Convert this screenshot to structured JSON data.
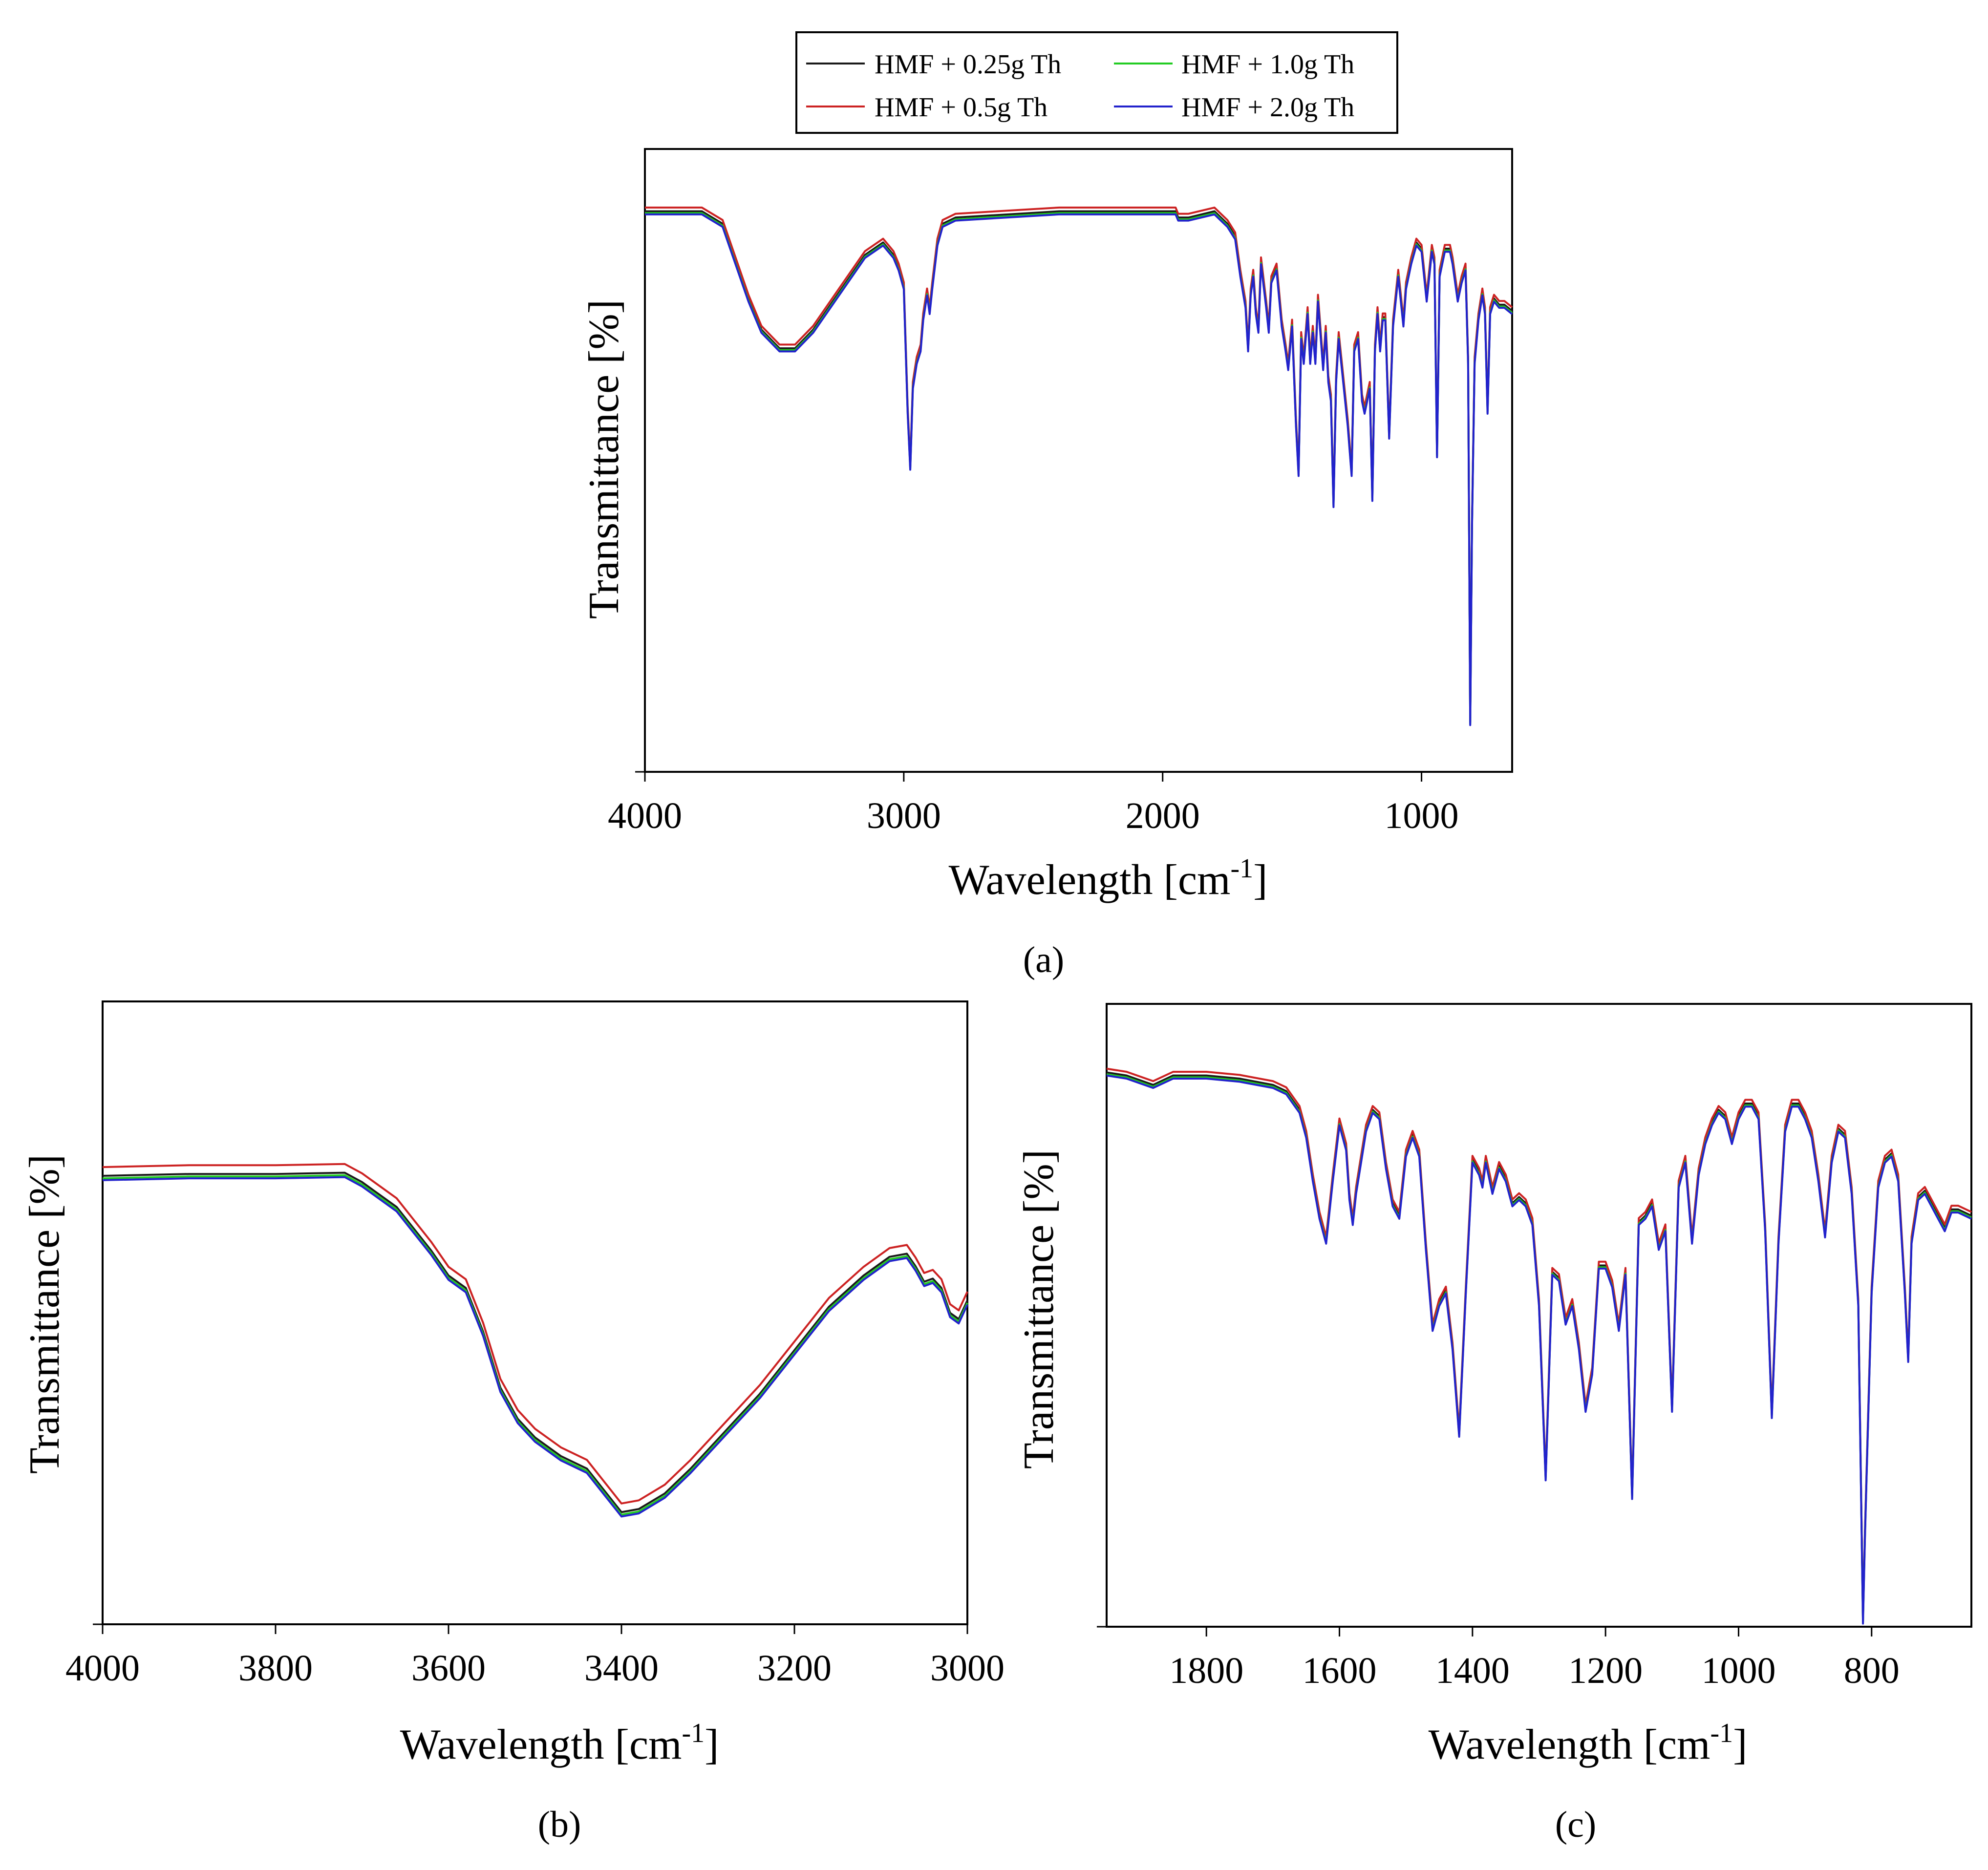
{
  "legend": [
    {
      "label": "HMF + 0.25g Th",
      "color": "#1a1a1a"
    },
    {
      "label": "HMF + 0.5g Th",
      "color": "#cc2222"
    },
    {
      "label": "HMF + 1.0g Th",
      "color": "#22cc22"
    },
    {
      "label": "HMF + 2.0g Th",
      "color": "#2222cc"
    }
  ],
  "chart_data": [
    {
      "type": "line",
      "panel": "a",
      "panel_label": "(a)",
      "xlabel": "Wavelength  [cm-1]",
      "xlabel_main": "Wavelength  [cm",
      "xlabel_sup": "-1",
      "xlabel_end": "]",
      "ylabel": "Transmittance [%]",
      "xlim": [
        4000,
        650
      ],
      "ylim": [
        0,
        100
      ],
      "xticks": [
        4000,
        3000,
        2000,
        1000
      ],
      "tick_labels": [
        "4000",
        "3000",
        "2000",
        "1000"
      ],
      "series": [
        {
          "name": "HMF + 0.25g Th",
          "offset": 0
        },
        {
          "name": "HMF + 0.5g Th",
          "offset": 0.6
        },
        {
          "name": "HMF + 1.0g Th",
          "offset": -0.3
        },
        {
          "name": "HMF + 2.0g Th",
          "offset": -0.5
        }
      ],
      "points": [
        [
          4000,
          90
        ],
        [
          3780,
          90
        ],
        [
          3700,
          88
        ],
        [
          3600,
          76
        ],
        [
          3550,
          71
        ],
        [
          3480,
          68
        ],
        [
          3420,
          68
        ],
        [
          3350,
          71
        ],
        [
          3250,
          77
        ],
        [
          3150,
          83
        ],
        [
          3080,
          85
        ],
        [
          3040,
          83
        ],
        [
          3020,
          81
        ],
        [
          3000,
          78
        ],
        [
          2985,
          58
        ],
        [
          2975,
          49
        ],
        [
          2965,
          62
        ],
        [
          2950,
          66
        ],
        [
          2935,
          68
        ],
        [
          2925,
          73
        ],
        [
          2910,
          77
        ],
        [
          2900,
          74
        ],
        [
          2890,
          78
        ],
        [
          2870,
          85
        ],
        [
          2850,
          88
        ],
        [
          2800,
          89
        ],
        [
          2400,
          90
        ],
        [
          2200,
          90
        ],
        [
          1950,
          90
        ],
        [
          1940,
          89
        ],
        [
          1930,
          89
        ],
        [
          1900,
          89
        ],
        [
          1800,
          90
        ],
        [
          1750,
          88
        ],
        [
          1720,
          86
        ],
        [
          1700,
          80
        ],
        [
          1680,
          75
        ],
        [
          1670,
          68
        ],
        [
          1660,
          77
        ],
        [
          1650,
          80
        ],
        [
          1640,
          74
        ],
        [
          1630,
          71
        ],
        [
          1620,
          82
        ],
        [
          1600,
          75
        ],
        [
          1590,
          71
        ],
        [
          1580,
          79
        ],
        [
          1560,
          81
        ],
        [
          1540,
          72
        ],
        [
          1525,
          68
        ],
        [
          1515,
          65
        ],
        [
          1500,
          72
        ],
        [
          1485,
          56
        ],
        [
          1475,
          48
        ],
        [
          1465,
          70
        ],
        [
          1455,
          66
        ],
        [
          1440,
          74
        ],
        [
          1430,
          66
        ],
        [
          1420,
          71
        ],
        [
          1410,
          66
        ],
        [
          1400,
          76
        ],
        [
          1380,
          65
        ],
        [
          1370,
          71
        ],
        [
          1360,
          63
        ],
        [
          1350,
          60
        ],
        [
          1340,
          43
        ],
        [
          1330,
          63
        ],
        [
          1320,
          70
        ],
        [
          1310,
          66
        ],
        [
          1300,
          62
        ],
        [
          1285,
          56
        ],
        [
          1270,
          48
        ],
        [
          1260,
          68
        ],
        [
          1245,
          70
        ],
        [
          1230,
          60
        ],
        [
          1220,
          58
        ],
        [
          1210,
          60
        ],
        [
          1200,
          62
        ],
        [
          1190,
          44
        ],
        [
          1180,
          68
        ],
        [
          1170,
          74
        ],
        [
          1160,
          68
        ],
        [
          1150,
          73
        ],
        [
          1140,
          73
        ],
        [
          1125,
          54
        ],
        [
          1110,
          72
        ],
        [
          1090,
          80
        ],
        [
          1070,
          72
        ],
        [
          1060,
          78
        ],
        [
          1050,
          80
        ],
        [
          1040,
          82
        ],
        [
          1020,
          85
        ],
        [
          1000,
          84
        ],
        [
          980,
          76
        ],
        [
          970,
          80
        ],
        [
          960,
          84
        ],
        [
          950,
          82
        ],
        [
          940,
          51
        ],
        [
          930,
          80
        ],
        [
          910,
          84
        ],
        [
          900,
          84
        ],
        [
          890,
          84
        ],
        [
          880,
          82
        ],
        [
          860,
          76
        ],
        [
          845,
          79
        ],
        [
          830,
          81
        ],
        [
          820,
          66
        ],
        [
          812,
          8
        ],
        [
          805,
          40
        ],
        [
          795,
          66
        ],
        [
          780,
          73
        ],
        [
          765,
          77
        ],
        [
          755,
          74
        ],
        [
          745,
          58
        ],
        [
          735,
          74
        ],
        [
          720,
          76
        ],
        [
          700,
          75
        ],
        [
          680,
          75
        ],
        [
          650,
          74
        ]
      ]
    },
    {
      "type": "line",
      "panel": "b",
      "panel_label": "(b)",
      "xlabel": "Wavelength  [cm-1]",
      "xlabel_main": "Wavelength  [cm",
      "xlabel_sup": "-1",
      "xlabel_end": "]",
      "ylabel": "Transmittance [%]",
      "xlim": [
        4000,
        3000
      ],
      "ylim": [
        0,
        100
      ],
      "xticks": [
        4000,
        3800,
        3600,
        3400,
        3200,
        3000
      ],
      "tick_labels": [
        "4000",
        "3800",
        "3600",
        "3400",
        "3200",
        "3000"
      ],
      "series": [
        {
          "name": "HMF + 0.25g Th",
          "offset": 0
        },
        {
          "name": "HMF + 0.5g Th",
          "offset": 1.4
        },
        {
          "name": "HMF + 1.0g Th",
          "offset": -0.4
        },
        {
          "name": "HMF + 2.0g Th",
          "offset": -0.7
        }
      ],
      "points": [
        [
          4000,
          72
        ],
        [
          3900,
          72.3
        ],
        [
          3800,
          72.3
        ],
        [
          3720,
          72.5
        ],
        [
          3700,
          71
        ],
        [
          3660,
          67
        ],
        [
          3620,
          60
        ],
        [
          3600,
          56
        ],
        [
          3580,
          54
        ],
        [
          3560,
          47
        ],
        [
          3540,
          38
        ],
        [
          3520,
          33
        ],
        [
          3500,
          30
        ],
        [
          3470,
          27
        ],
        [
          3440,
          25
        ],
        [
          3400,
          18
        ],
        [
          3380,
          18.5
        ],
        [
          3350,
          21
        ],
        [
          3320,
          25
        ],
        [
          3280,
          31
        ],
        [
          3240,
          37
        ],
        [
          3200,
          44
        ],
        [
          3160,
          51
        ],
        [
          3120,
          56
        ],
        [
          3090,
          59
        ],
        [
          3070,
          59.5
        ],
        [
          3060,
          57.5
        ],
        [
          3050,
          55
        ],
        [
          3040,
          55.5
        ],
        [
          3030,
          54
        ],
        [
          3020,
          50
        ],
        [
          3010,
          49
        ],
        [
          3000,
          52
        ]
      ]
    },
    {
      "type": "line",
      "panel": "c",
      "panel_label": "(c)",
      "xlabel": "Wavelength  [cm-1]",
      "xlabel_main": "Wavelength  [cm",
      "xlabel_sup": "-1",
      "xlabel_end": "]",
      "ylabel": "Transmittance [%]",
      "xlim": [
        1950,
        650
      ],
      "ylim": [
        0,
        100
      ],
      "xticks": [
        1800,
        1600,
        1400,
        1200,
        1000,
        800
      ],
      "tick_labels": [
        "1800",
        "1600",
        "1400",
        "1200",
        "1000",
        "800"
      ],
      "series": [
        {
          "name": "HMF + 0.25g Th",
          "offset": 0
        },
        {
          "name": "HMF + 0.5g Th",
          "offset": 0.6
        },
        {
          "name": "HMF + 1.0g Th",
          "offset": -0.3
        },
        {
          "name": "HMF + 2.0g Th",
          "offset": -0.5
        }
      ],
      "points": [
        [
          1950,
          89
        ],
        [
          1920,
          88.5
        ],
        [
          1880,
          87
        ],
        [
          1850,
          88.5
        ],
        [
          1800,
          88.5
        ],
        [
          1750,
          88
        ],
        [
          1700,
          87
        ],
        [
          1680,
          86
        ],
        [
          1660,
          83
        ],
        [
          1650,
          79
        ],
        [
          1640,
          72
        ],
        [
          1630,
          66
        ],
        [
          1620,
          62
        ],
        [
          1610,
          72
        ],
        [
          1600,
          81
        ],
        [
          1590,
          77
        ],
        [
          1585,
          69
        ],
        [
          1580,
          65
        ],
        [
          1575,
          70
        ],
        [
          1560,
          80
        ],
        [
          1550,
          83
        ],
        [
          1540,
          82
        ],
        [
          1530,
          74
        ],
        [
          1520,
          68
        ],
        [
          1510,
          66
        ],
        [
          1500,
          76
        ],
        [
          1490,
          79
        ],
        [
          1480,
          76
        ],
        [
          1470,
          61
        ],
        [
          1460,
          48
        ],
        [
          1450,
          52
        ],
        [
          1440,
          54
        ],
        [
          1430,
          45
        ],
        [
          1420,
          31
        ],
        [
          1410,
          54
        ],
        [
          1400,
          75
        ],
        [
          1390,
          73
        ],
        [
          1385,
          71
        ],
        [
          1380,
          75
        ],
        [
          1370,
          70
        ],
        [
          1360,
          74
        ],
        [
          1350,
          72
        ],
        [
          1340,
          68
        ],
        [
          1330,
          69
        ],
        [
          1320,
          68
        ],
        [
          1310,
          65
        ],
        [
          1300,
          52
        ],
        [
          1290,
          24
        ],
        [
          1280,
          57
        ],
        [
          1270,
          56
        ],
        [
          1260,
          49
        ],
        [
          1250,
          52
        ],
        [
          1240,
          45
        ],
        [
          1230,
          35
        ],
        [
          1220,
          41
        ],
        [
          1210,
          58
        ],
        [
          1200,
          58
        ],
        [
          1190,
          55
        ],
        [
          1180,
          48
        ],
        [
          1170,
          57
        ],
        [
          1160,
          21
        ],
        [
          1150,
          65
        ],
        [
          1140,
          66
        ],
        [
          1130,
          68
        ],
        [
          1120,
          61
        ],
        [
          1110,
          64
        ],
        [
          1100,
          35
        ],
        [
          1090,
          71
        ],
        [
          1080,
          75
        ],
        [
          1070,
          62
        ],
        [
          1060,
          73
        ],
        [
          1050,
          78
        ],
        [
          1040,
          81
        ],
        [
          1030,
          83
        ],
        [
          1020,
          82
        ],
        [
          1010,
          78
        ],
        [
          1000,
          82
        ],
        [
          990,
          84
        ],
        [
          980,
          84
        ],
        [
          970,
          82
        ],
        [
          960,
          64
        ],
        [
          950,
          34
        ],
        [
          940,
          62
        ],
        [
          930,
          80
        ],
        [
          920,
          84
        ],
        [
          910,
          84
        ],
        [
          900,
          82
        ],
        [
          890,
          79
        ],
        [
          880,
          72
        ],
        [
          870,
          63
        ],
        [
          860,
          75
        ],
        [
          850,
          80
        ],
        [
          840,
          79
        ],
        [
          830,
          70
        ],
        [
          820,
          52
        ],
        [
          813,
          1
        ],
        [
          810,
          15
        ],
        [
          800,
          54
        ],
        [
          790,
          71
        ],
        [
          780,
          75
        ],
        [
          770,
          76
        ],
        [
          760,
          72
        ],
        [
          750,
          54
        ],
        [
          745,
          43
        ],
        [
          740,
          62
        ],
        [
          730,
          69
        ],
        [
          720,
          70
        ],
        [
          710,
          68
        ],
        [
          700,
          66
        ],
        [
          690,
          64
        ],
        [
          680,
          67
        ],
        [
          670,
          67
        ],
        [
          650,
          66
        ]
      ]
    }
  ]
}
